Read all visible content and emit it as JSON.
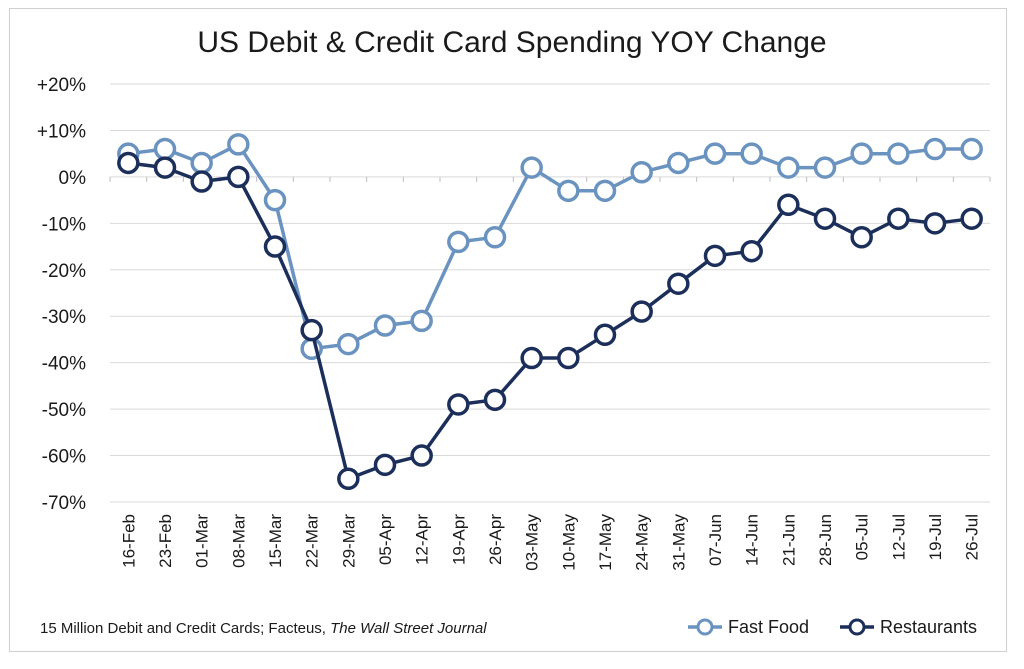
{
  "chart_data": {
    "type": "line",
    "title": "US Debit & Credit Card Spending YOY Change",
    "source_prefix": "15 Million Debit and Credit Cards; Facteus, ",
    "source_italic": "The Wall Street Journal",
    "ylim": [
      -70,
      20
    ],
    "yticks": [
      {
        "value": 20,
        "label": "+20%"
      },
      {
        "value": 10,
        "label": "+10%"
      },
      {
        "value": 0,
        "label": "0%"
      },
      {
        "value": -10,
        "label": "-10%"
      },
      {
        "value": -20,
        "label": "-20%"
      },
      {
        "value": -30,
        "label": "-30%"
      },
      {
        "value": -40,
        "label": "-40%"
      },
      {
        "value": -50,
        "label": "-50%"
      },
      {
        "value": -60,
        "label": "-60%"
      },
      {
        "value": -70,
        "label": "-70%"
      }
    ],
    "grid": true,
    "legend_position": "bottom-right",
    "categories": [
      "16-Feb",
      "23-Feb",
      "01-Mar",
      "08-Mar",
      "15-Mar",
      "22-Mar",
      "29-Mar",
      "05-Apr",
      "12-Apr",
      "19-Apr",
      "26-Apr",
      "03-May",
      "10-May",
      "17-May",
      "24-May",
      "31-May",
      "07-Jun",
      "14-Jun",
      "21-Jun",
      "28-Jun",
      "05-Jul",
      "12-Jul",
      "19-Jul",
      "26-Jul"
    ],
    "series": [
      {
        "name": "Fast Food",
        "color": "#6b93bf",
        "values": [
          5,
          6,
          3,
          7,
          -5,
          -37,
          -36,
          -32,
          -31,
          -14,
          -13,
          2,
          -3,
          -3,
          1,
          3,
          5,
          5,
          2,
          2,
          5,
          5,
          6,
          6
        ]
      },
      {
        "name": "Restaurants",
        "color": "#1b2f5a",
        "values": [
          3,
          2,
          -1,
          0,
          -15,
          -33,
          -65,
          -62,
          -60,
          -49,
          -48,
          -39,
          -39,
          -34,
          -29,
          -23,
          -17,
          -16,
          -6,
          -9,
          -13,
          -9,
          -10,
          -9
        ]
      }
    ]
  }
}
